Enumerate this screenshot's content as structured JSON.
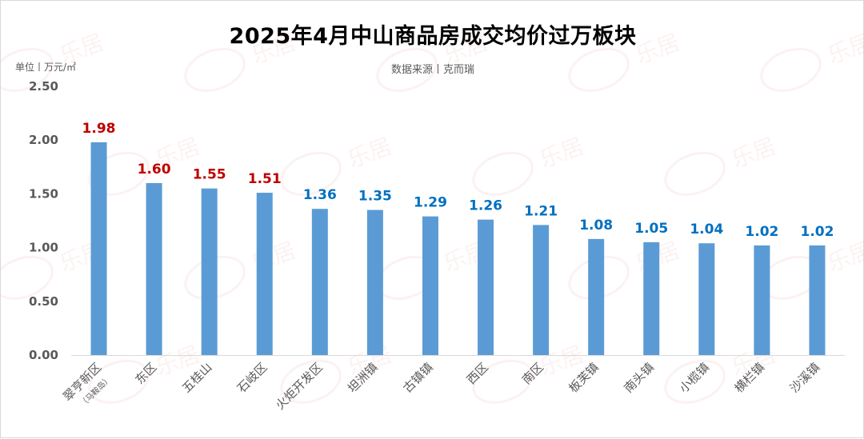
{
  "title": "2025年4月中山商品房成交均价过万板块",
  "unit_label": "单位丨万元/㎡",
  "source_label": "数据来源丨克而瑞",
  "watermark_text": "乐居",
  "colors": {
    "bar": "#5b9bd5",
    "label_high": "#c00000",
    "label_normal": "#0070c0",
    "axis_text": "#595959",
    "grid": "#d9d9d9"
  },
  "chart_data": {
    "type": "bar",
    "categories": [
      "翠亨新区",
      "东区",
      "五桂山",
      "石岐区",
      "火炬开发区",
      "坦洲镇",
      "古镇镇",
      "西区",
      "南区",
      "板芙镇",
      "南头镇",
      "小榄镇",
      "横栏镇",
      "沙溪镇"
    ],
    "category_sublabels": [
      "（马鞍岛）",
      "",
      "",
      "",
      "",
      "",
      "",
      "",
      "",
      "",
      "",
      "",
      "",
      ""
    ],
    "values": [
      1.98,
      1.6,
      1.55,
      1.51,
      1.36,
      1.35,
      1.29,
      1.26,
      1.21,
      1.08,
      1.05,
      1.04,
      1.02,
      1.02
    ],
    "data_labels": [
      "1.98",
      "1.60",
      "1.55",
      "1.51",
      "1.36",
      "1.35",
      "1.29",
      "1.26",
      "1.21",
      "1.08",
      "1.05",
      "1.04",
      "1.02",
      "1.02"
    ],
    "label_color_groups": [
      "high",
      "high",
      "high",
      "high",
      "normal",
      "normal",
      "normal",
      "normal",
      "normal",
      "normal",
      "normal",
      "normal",
      "normal",
      "normal"
    ],
    "yticks": [
      "0.00",
      "0.50",
      "1.00",
      "1.50",
      "2.00",
      "2.50"
    ],
    "ylim": [
      0,
      2.5
    ],
    "grid": false,
    "legend": "none"
  }
}
